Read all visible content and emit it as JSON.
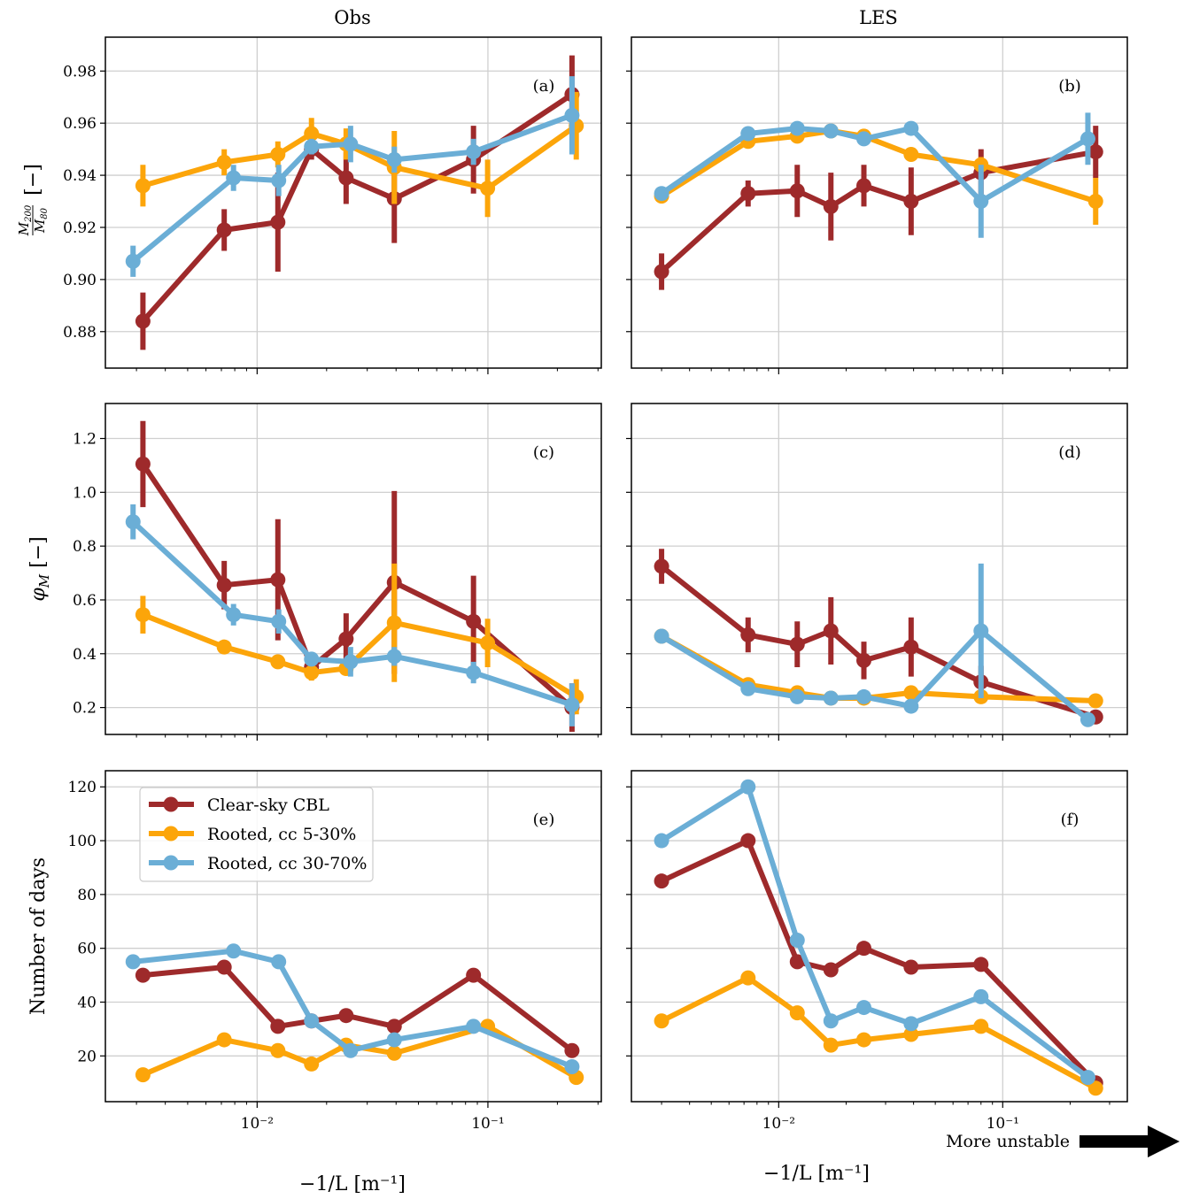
{
  "figure": {
    "column_titles": [
      "Obs",
      "LES"
    ],
    "x_axis_label": "−1/L [m⁻¹]",
    "annotation": "More unstable"
  },
  "colors": {
    "clear_sky": "#9e2a2b",
    "cc_5_30": "#fca50a",
    "cc_30_70": "#6baed6"
  },
  "legend": [
    {
      "label": "Clear-sky CBL",
      "color": "#9e2a2b"
    },
    {
      "label": "Rooted, cc 5-30%",
      "color": "#fca50a"
    },
    {
      "label": "Rooted, cc 30-70%",
      "color": "#6baed6"
    }
  ],
  "chart_data": [
    {
      "id": "a",
      "tag": "(a)",
      "type": "line",
      "column": "Obs",
      "ylabel": "M200/M80 [−]",
      "xscale": "log",
      "xlim": [
        0.0022,
        0.31
      ],
      "ylim": [
        0.866,
        0.993
      ],
      "yticks": [
        0.88,
        0.9,
        0.92,
        0.94,
        0.96,
        0.98
      ],
      "yticklabels": [
        "0.88",
        "0.90",
        "0.92",
        "0.94",
        "0.96",
        "0.98"
      ],
      "xticks": [
        0.01,
        0.1
      ],
      "xticklabels": [
        "10⁻²",
        "10⁻¹"
      ],
      "show_xticklabels": false,
      "grid": true,
      "series": [
        {
          "name": "Clear-sky CBL",
          "color": "#9e2a2b",
          "x": [
            0.0032,
            0.0072,
            0.0123,
            0.0172,
            0.0243,
            0.0393,
            0.0866,
            0.2314
          ],
          "y": [
            0.884,
            0.919,
            0.922,
            0.95,
            0.939,
            0.931,
            0.946,
            0.971
          ],
          "err": [
            0.011,
            0.008,
            0.019,
            0.004,
            0.01,
            0.017,
            0.013,
            0.015
          ]
        },
        {
          "name": "Rooted, cc 5-30%",
          "color": "#fca50a",
          "x": [
            0.0032,
            0.0072,
            0.0123,
            0.0172,
            0.0243,
            0.0393,
            0.0997,
            0.2415
          ],
          "y": [
            0.936,
            0.945,
            0.948,
            0.956,
            0.952,
            0.943,
            0.935,
            0.959
          ],
          "err": [
            0.008,
            0.005,
            0.005,
            0.006,
            0.006,
            0.014,
            0.011,
            0.013
          ]
        },
        {
          "name": "Rooted, cc 30-70%",
          "color": "#6baed6",
          "x": [
            0.0029,
            0.0079,
            0.0124,
            0.0172,
            0.0254,
            0.0393,
            0.0866,
            0.2314
          ],
          "y": [
            0.907,
            0.939,
            0.938,
            0.951,
            0.952,
            0.946,
            0.949,
            0.963
          ],
          "err": [
            0.006,
            0.005,
            0.006,
            0.003,
            0.007,
            0.005,
            0.005,
            0.015
          ]
        }
      ]
    },
    {
      "id": "b",
      "tag": "(b)",
      "type": "line",
      "column": "LES",
      "ylabel": "",
      "xscale": "log",
      "xlim": [
        0.0022,
        0.36
      ],
      "ylim": [
        0.866,
        0.993
      ],
      "yticks": [
        0.88,
        0.9,
        0.92,
        0.94,
        0.96,
        0.98
      ],
      "yticklabels": [],
      "xticks": [
        0.01,
        0.1
      ],
      "xticklabels": [
        "10⁻²",
        "10⁻¹"
      ],
      "show_xticklabels": false,
      "grid": true,
      "series": [
        {
          "name": "Clear-sky CBL",
          "color": "#9e2a2b",
          "x": [
            0.003,
            0.0073,
            0.0121,
            0.0171,
            0.024,
            0.039,
            0.08,
            0.26
          ],
          "y": [
            0.903,
            0.933,
            0.934,
            0.928,
            0.936,
            0.93,
            0.941,
            0.949
          ],
          "err": [
            0.007,
            0.005,
            0.01,
            0.013,
            0.008,
            0.013,
            0.009,
            0.01
          ]
        },
        {
          "name": "Rooted, cc 5-30%",
          "color": "#fca50a",
          "x": [
            0.003,
            0.0073,
            0.0121,
            0.0171,
            0.024,
            0.039,
            0.08,
            0.26
          ],
          "y": [
            0.932,
            0.953,
            0.955,
            0.957,
            0.955,
            0.948,
            0.944,
            0.93
          ],
          "err": [
            0.002,
            0.002,
            0.002,
            0.002,
            0.002,
            0.002,
            0.003,
            0.009
          ]
        },
        {
          "name": "Rooted, cc 30-70%",
          "color": "#6baed6",
          "x": [
            0.003,
            0.0073,
            0.0121,
            0.0171,
            0.024,
            0.039,
            0.08,
            0.24
          ],
          "y": [
            0.933,
            0.956,
            0.958,
            0.957,
            0.954,
            0.958,
            0.93,
            0.954
          ],
          "err": [
            0.002,
            0.002,
            0.002,
            0.002,
            0.002,
            0.002,
            0.014,
            0.01
          ]
        }
      ]
    },
    {
      "id": "c",
      "tag": "(c)",
      "type": "line",
      "column": "Obs",
      "ylabel": "φM [−]",
      "xscale": "log",
      "xlim": [
        0.0022,
        0.31
      ],
      "ylim": [
        0.1,
        1.33
      ],
      "yticks": [
        0.2,
        0.4,
        0.6,
        0.8,
        1.0,
        1.2
      ],
      "yticklabels": [
        "0.2",
        "0.4",
        "0.6",
        "0.8",
        "1.0",
        "1.2"
      ],
      "xticks": [
        0.01,
        0.1
      ],
      "xticklabels": [
        "10⁻²",
        "10⁻¹"
      ],
      "show_xticklabels": false,
      "grid": true,
      "series": [
        {
          "name": "Clear-sky CBL",
          "color": "#9e2a2b",
          "x": [
            0.0032,
            0.0072,
            0.0123,
            0.0172,
            0.0243,
            0.0393,
            0.0866,
            0.2314
          ],
          "y": [
            1.105,
            0.655,
            0.675,
            0.35,
            0.455,
            0.665,
            0.52,
            0.2
          ],
          "err": [
            0.16,
            0.09,
            0.225,
            0.04,
            0.095,
            0.34,
            0.17,
            0.09
          ]
        },
        {
          "name": "Rooted, cc 5-30%",
          "color": "#fca50a",
          "x": [
            0.0032,
            0.0072,
            0.0123,
            0.0172,
            0.0243,
            0.0393,
            0.0997,
            0.2415
          ],
          "y": [
            0.545,
            0.425,
            0.37,
            0.33,
            0.345,
            0.515,
            0.44,
            0.24
          ],
          "err": [
            0.07,
            0.025,
            0.02,
            0.03,
            0.02,
            0.22,
            0.09,
            0.065
          ]
        },
        {
          "name": "Rooted, cc 30-70%",
          "color": "#6baed6",
          "x": [
            0.0029,
            0.0079,
            0.0124,
            0.0172,
            0.0254,
            0.0393,
            0.0866,
            0.2314
          ],
          "y": [
            0.89,
            0.545,
            0.52,
            0.38,
            0.37,
            0.39,
            0.33,
            0.21
          ],
          "err": [
            0.065,
            0.04,
            0.045,
            0.02,
            0.055,
            0.035,
            0.04,
            0.08
          ]
        }
      ]
    },
    {
      "id": "d",
      "tag": "(d)",
      "type": "line",
      "column": "LES",
      "ylabel": "",
      "xscale": "log",
      "xlim": [
        0.0022,
        0.36
      ],
      "ylim": [
        0.1,
        1.33
      ],
      "yticks": [
        0.2,
        0.4,
        0.6,
        0.8,
        1.0,
        1.2
      ],
      "yticklabels": [],
      "xticks": [
        0.01,
        0.1
      ],
      "xticklabels": [
        "10⁻²",
        "10⁻¹"
      ],
      "show_xticklabels": false,
      "grid": true,
      "series": [
        {
          "name": "Clear-sky CBL",
          "color": "#9e2a2b",
          "x": [
            0.003,
            0.0073,
            0.0121,
            0.0171,
            0.024,
            0.039,
            0.08,
            0.26
          ],
          "y": [
            0.725,
            0.47,
            0.435,
            0.485,
            0.375,
            0.425,
            0.295,
            0.165
          ],
          "err": [
            0.065,
            0.065,
            0.085,
            0.125,
            0.07,
            0.11,
            0.06,
            0.02
          ]
        },
        {
          "name": "Rooted, cc 5-30%",
          "color": "#fca50a",
          "x": [
            0.003,
            0.0073,
            0.0121,
            0.0171,
            0.024,
            0.039,
            0.08,
            0.26
          ],
          "y": [
            0.465,
            0.285,
            0.255,
            0.235,
            0.235,
            0.255,
            0.24,
            0.225
          ],
          "err": [
            0.015,
            0.015,
            0.015,
            0.015,
            0.015,
            0.015,
            0.02,
            0.02
          ]
        },
        {
          "name": "Rooted, cc 30-70%",
          "color": "#6baed6",
          "x": [
            0.003,
            0.0073,
            0.0121,
            0.0171,
            0.024,
            0.039,
            0.08,
            0.24
          ],
          "y": [
            0.465,
            0.27,
            0.24,
            0.235,
            0.24,
            0.205,
            0.485,
            0.155
          ],
          "err": [
            0.015,
            0.015,
            0.015,
            0.015,
            0.015,
            0.015,
            0.25,
            0.02
          ]
        }
      ]
    },
    {
      "id": "e",
      "tag": "(e)",
      "type": "line",
      "column": "Obs",
      "ylabel": "Number of days",
      "xscale": "log",
      "xlim": [
        0.0022,
        0.31
      ],
      "ylim": [
        3,
        126
      ],
      "yticks": [
        20,
        40,
        60,
        80,
        100,
        120
      ],
      "yticklabels": [
        "20",
        "40",
        "60",
        "80",
        "100",
        "120"
      ],
      "xticks": [
        0.01,
        0.1
      ],
      "xticklabels": [
        "10⁻²",
        "10⁻¹"
      ],
      "show_xticklabels": true,
      "grid": true,
      "series": [
        {
          "name": "Clear-sky CBL",
          "color": "#9e2a2b",
          "x": [
            0.0032,
            0.0072,
            0.0123,
            0.0172,
            0.0243,
            0.0393,
            0.0866,
            0.2314
          ],
          "y": [
            50,
            53,
            31,
            33,
            35,
            31,
            50,
            22
          ],
          "err": []
        },
        {
          "name": "Rooted, cc 5-30%",
          "color": "#fca50a",
          "x": [
            0.0032,
            0.0072,
            0.0123,
            0.0172,
            0.0243,
            0.0393,
            0.0997,
            0.2415
          ],
          "y": [
            13,
            26,
            22,
            17,
            24,
            21,
            31,
            12
          ],
          "err": []
        },
        {
          "name": "Rooted, cc 30-70%",
          "color": "#6baed6",
          "x": [
            0.0029,
            0.0079,
            0.0124,
            0.0172,
            0.0254,
            0.0393,
            0.0866,
            0.2314
          ],
          "y": [
            55,
            59,
            55,
            33,
            22,
            26,
            31,
            16
          ],
          "err": []
        }
      ]
    },
    {
      "id": "f",
      "tag": "(f)",
      "type": "line",
      "column": "LES",
      "ylabel": "",
      "xscale": "log",
      "xlim": [
        0.0022,
        0.36
      ],
      "ylim": [
        3,
        126
      ],
      "yticks": [
        20,
        40,
        60,
        80,
        100,
        120
      ],
      "yticklabels": [],
      "xticks": [
        0.01,
        0.1
      ],
      "xticklabels": [
        "10⁻²",
        "10⁻¹"
      ],
      "show_xticklabels": true,
      "grid": true,
      "series": [
        {
          "name": "Clear-sky CBL",
          "color": "#9e2a2b",
          "x": [
            0.003,
            0.0073,
            0.0121,
            0.0171,
            0.024,
            0.039,
            0.08,
            0.26
          ],
          "y": [
            85,
            100,
            55,
            52,
            60,
            53,
            54,
            10
          ],
          "err": []
        },
        {
          "name": "Rooted, cc 5-30%",
          "color": "#fca50a",
          "x": [
            0.003,
            0.0073,
            0.0121,
            0.0171,
            0.024,
            0.039,
            0.08,
            0.26
          ],
          "y": [
            33,
            49,
            36,
            24,
            26,
            28,
            31,
            8
          ],
          "err": []
        },
        {
          "name": "Rooted, cc 30-70%",
          "color": "#6baed6",
          "x": [
            0.003,
            0.0073,
            0.0121,
            0.0171,
            0.024,
            0.039,
            0.08,
            0.24
          ],
          "y": [
            100,
            120,
            63,
            33,
            38,
            32,
            42,
            12
          ],
          "err": []
        }
      ]
    }
  ]
}
